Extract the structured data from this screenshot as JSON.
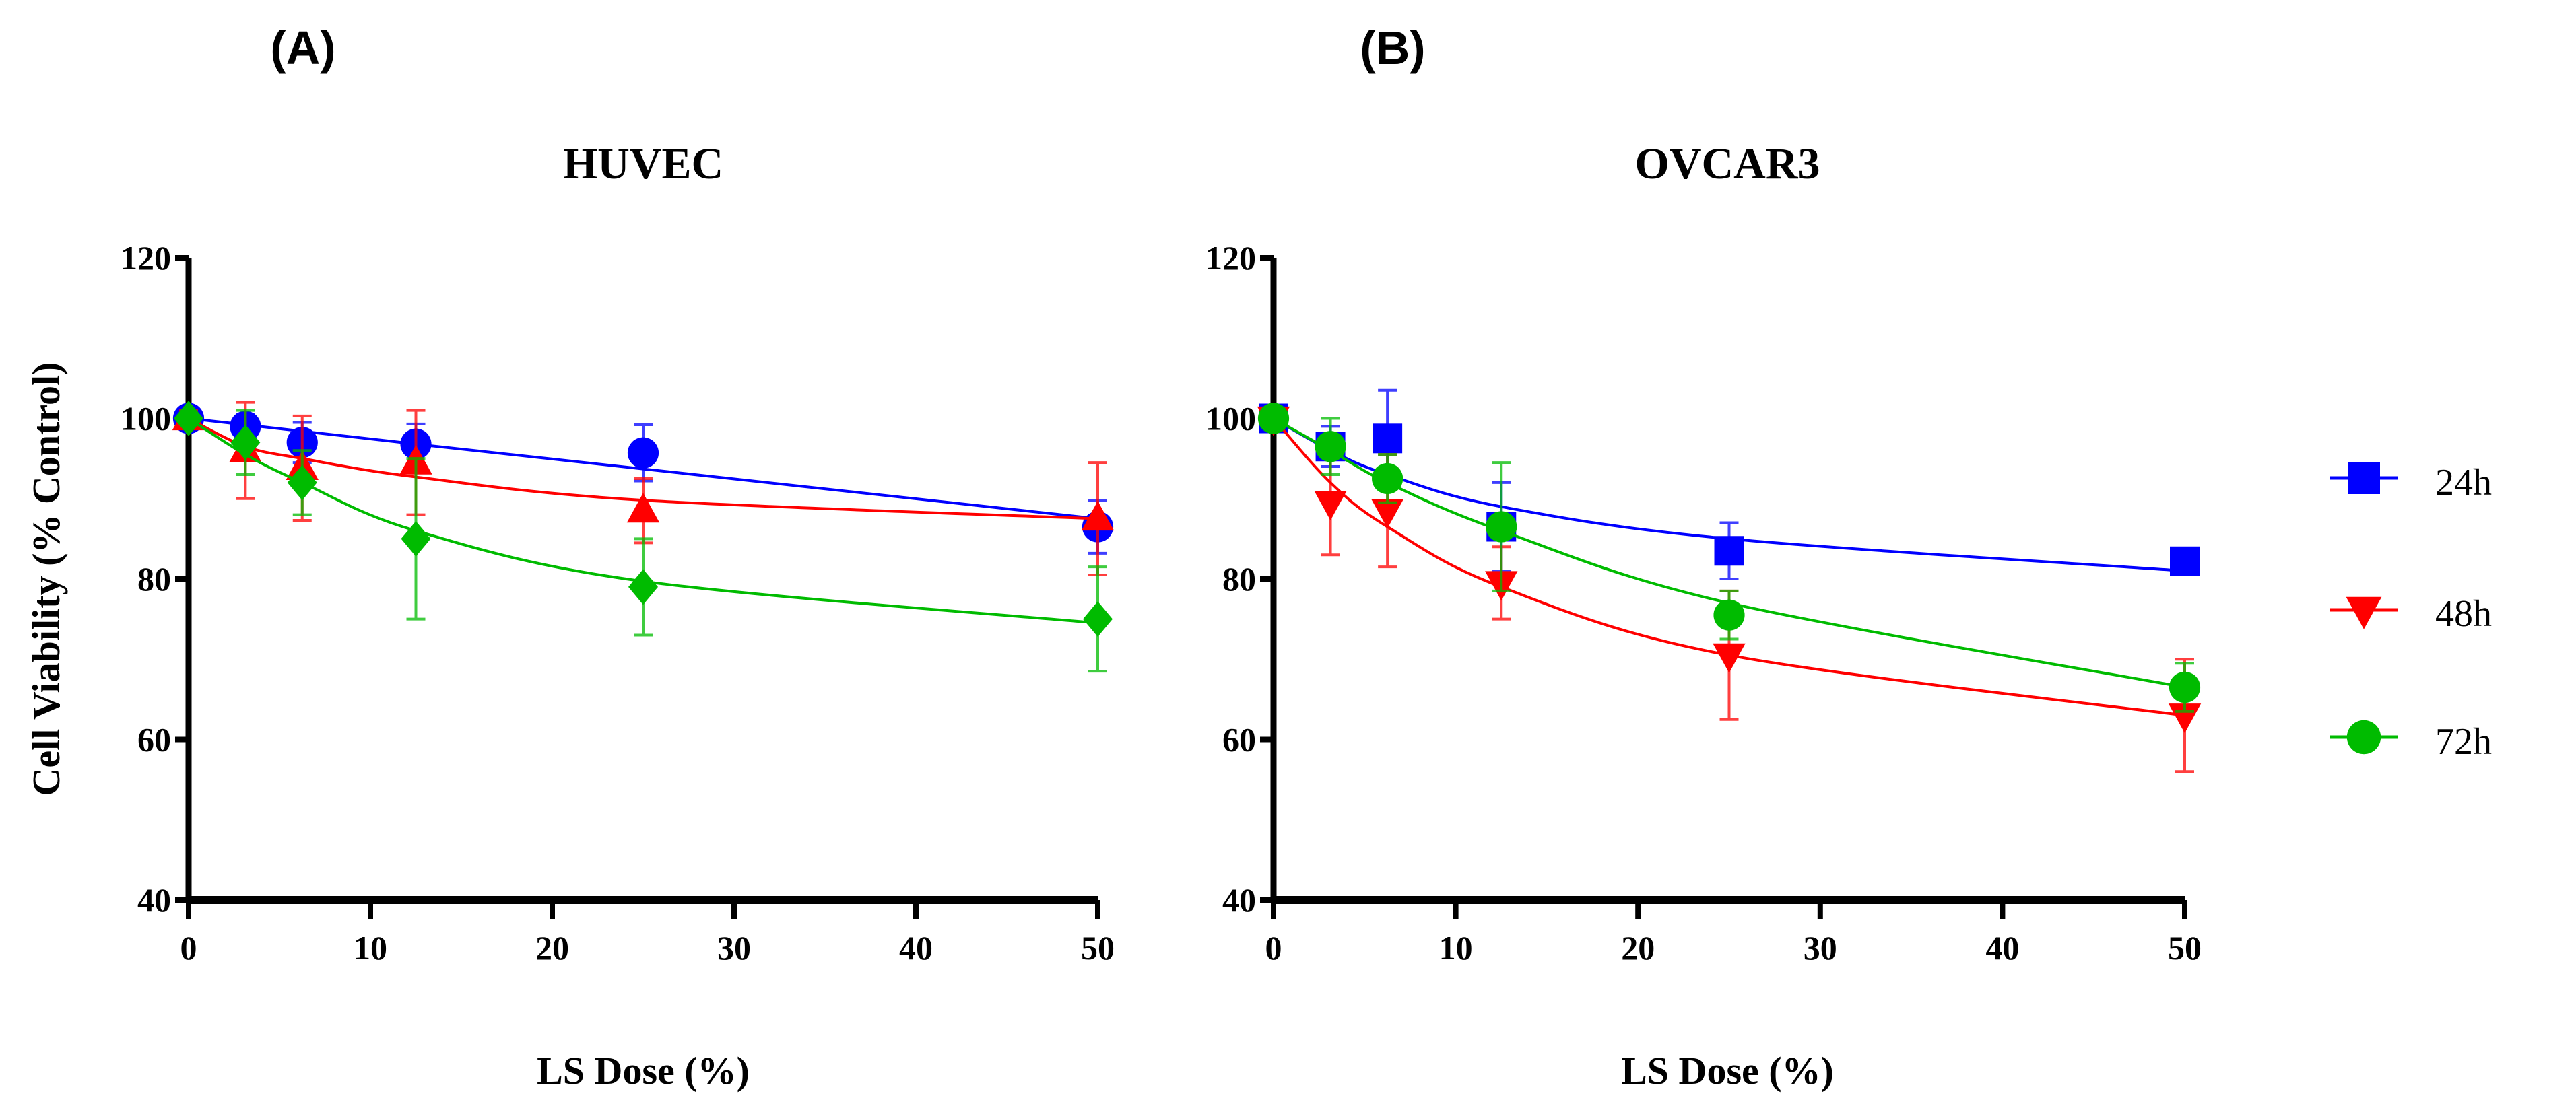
{
  "chart_data": [
    {
      "type": "line",
      "panel_label": "(A)",
      "title": "HUVEC",
      "xlabel": "LS Dose (%)",
      "ylabel": "Cell Viability (%  Control)",
      "xlim": [
        0,
        50
      ],
      "ylim": [
        40,
        120
      ],
      "xticks": [
        0,
        10,
        20,
        30,
        40,
        50
      ],
      "yticks": [
        40,
        60,
        80,
        100,
        120
      ],
      "grid": false,
      "x": [
        0,
        3.125,
        6.25,
        12.5,
        25,
        50
      ],
      "series": [
        {
          "key": "24h",
          "color": "#0000ff",
          "marker": "circle",
          "values": [
            100,
            99,
            97,
            96.8,
            95.7,
            86.5
          ],
          "errors": [
            0.5,
            1.5,
            2.5,
            2.5,
            3.5,
            3.3
          ],
          "fit": [
            100,
            99.2,
            98.4,
            96.8,
            93.7,
            87.5
          ]
        },
        {
          "key": "48h",
          "color": "#ff0000",
          "marker": "triangle-up",
          "values": [
            100,
            96,
            93.8,
            94.5,
            88.5,
            87.5
          ],
          "errors": [
            1,
            6,
            6.5,
            6.5,
            4,
            7
          ],
          "fit": [
            100,
            96.5,
            95,
            92.7,
            89.8,
            87.5
          ]
        },
        {
          "key": "72h",
          "color": "#00bb00",
          "marker": "diamond",
          "values": [
            100,
            97,
            92,
            85,
            79,
            75
          ],
          "errors": [
            0.5,
            4,
            4,
            10,
            6,
            6.5
          ],
          "fit": [
            100,
            95.5,
            92,
            86,
            79.7,
            74.5
          ]
        }
      ]
    },
    {
      "type": "line",
      "panel_label": "(B)",
      "title": "OVCAR3",
      "xlabel": "LS Dose (%)",
      "ylabel": "",
      "xlim": [
        0,
        50
      ],
      "ylim": [
        40,
        120
      ],
      "xticks": [
        0,
        10,
        20,
        30,
        40,
        50
      ],
      "yticks": [
        40,
        60,
        80,
        100,
        120
      ],
      "grid": false,
      "legend_position": "right",
      "x": [
        0,
        3.125,
        6.25,
        12.5,
        25,
        50
      ],
      "series": [
        {
          "name": "24h",
          "key": "24h",
          "color": "#0000ff",
          "marker": "square",
          "values": [
            100,
            96.5,
            97.5,
            86.5,
            83.5,
            82.2
          ],
          "errors": [
            0.5,
            2.5,
            6,
            5.5,
            3.5,
            1
          ],
          "fit": [
            100,
            96,
            93,
            89,
            85,
            81
          ]
        },
        {
          "name": "48h",
          "key": "48h",
          "color": "#ff0000",
          "marker": "triangle-down",
          "values": [
            100,
            89.5,
            88.5,
            79.5,
            70.5,
            63
          ],
          "errors": [
            0.5,
            6.5,
            7,
            4.5,
            8,
            7
          ],
          "fit": [
            100,
            92,
            86.5,
            79,
            70.5,
            63
          ]
        },
        {
          "name": "72h",
          "key": "72h",
          "color": "#00bb00",
          "marker": "circle",
          "values": [
            100,
            96.5,
            92.5,
            86.5,
            75.5,
            66.5
          ],
          "errors": [
            0.5,
            3.5,
            3,
            8,
            3,
            3
          ],
          "fit": [
            100,
            96,
            92,
            86,
            77,
            66.5
          ]
        }
      ]
    }
  ]
}
